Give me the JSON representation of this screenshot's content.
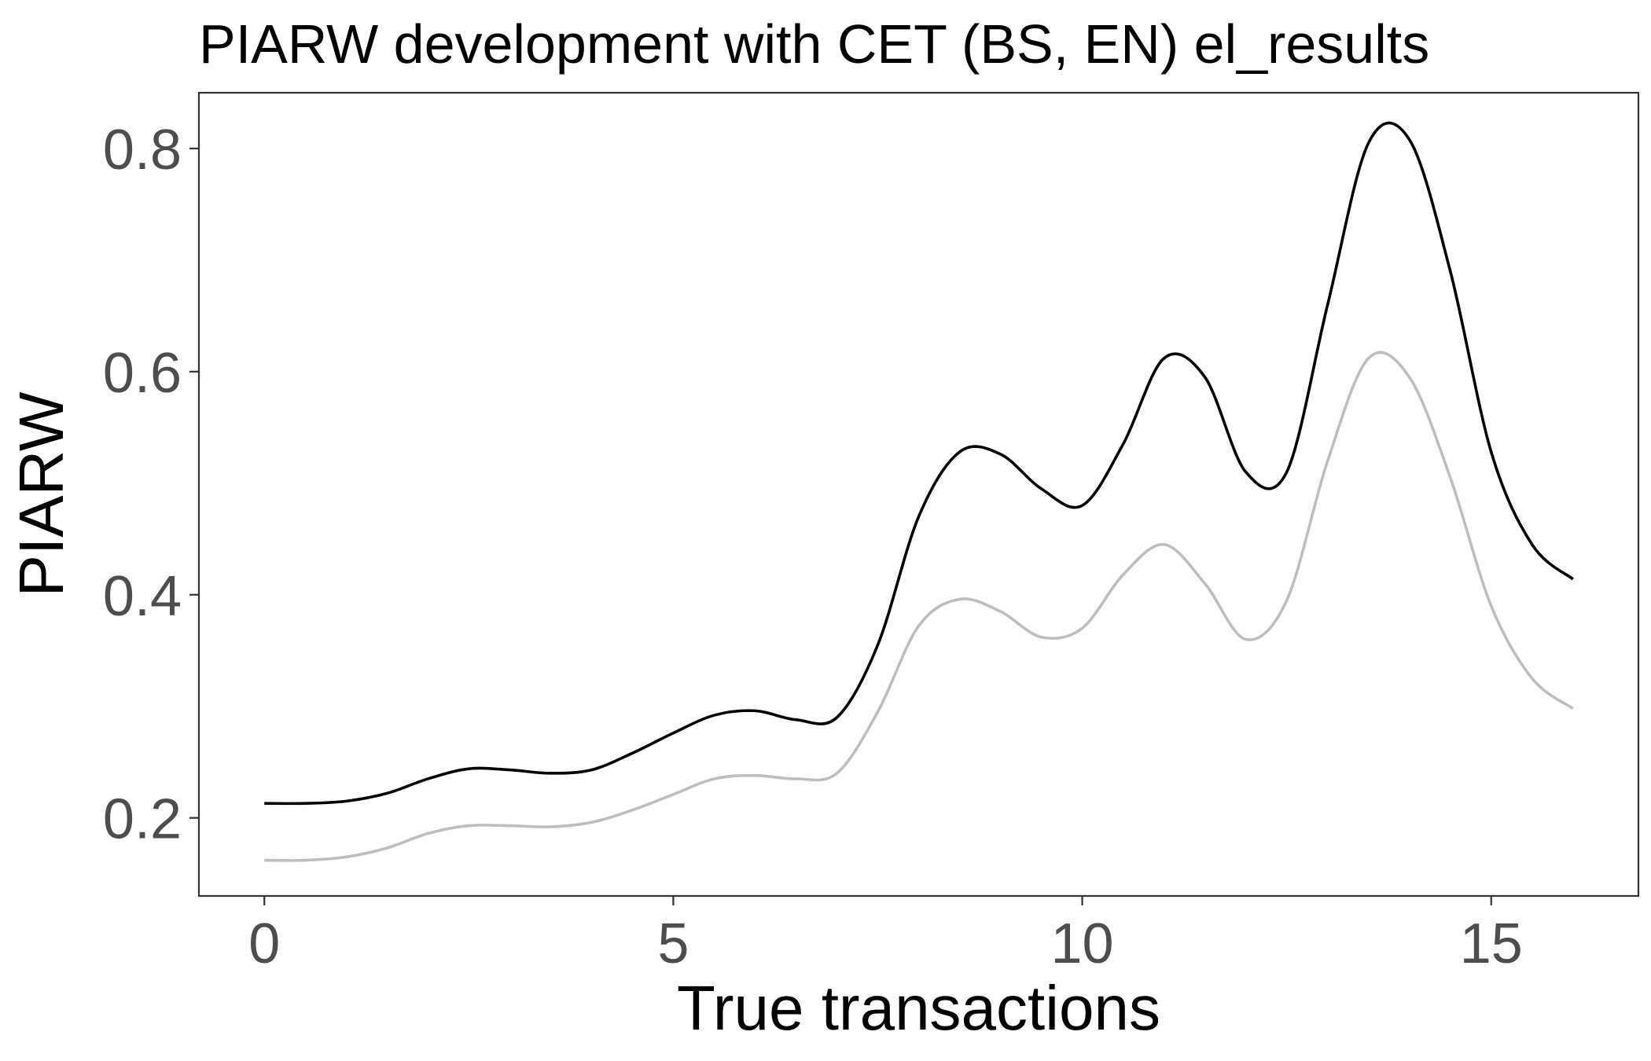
{
  "chart_data": {
    "type": "line",
    "title": "PIARW development with CET (BS, EN) el_results",
    "xlabel": "True transactions",
    "ylabel": "PIARW",
    "xlim": [
      -0.8,
      16.8
    ],
    "ylim": [
      0.13,
      0.85
    ],
    "xticks": [
      0,
      5,
      10,
      15
    ],
    "xtick_labels": [
      "0",
      "5",
      "10",
      "15"
    ],
    "yticks": [
      0.2,
      0.4,
      0.6,
      0.8
    ],
    "ytick_labels": [
      "0.2",
      "0.4",
      "0.6",
      "0.8"
    ],
    "grid": false,
    "legend": "none",
    "series": [
      {
        "color": "#000000",
        "x": [
          0,
          0.5,
          1,
          1.5,
          2,
          2.5,
          3,
          3.5,
          4,
          4.5,
          5,
          5.5,
          6,
          6.5,
          7,
          7.5,
          8,
          8.5,
          9,
          9.5,
          10,
          10.5,
          11,
          11.5,
          12,
          12.5,
          13,
          13.5,
          14,
          14.5,
          15,
          15.5,
          16
        ],
        "y": [
          0.213,
          0.213,
          0.215,
          0.222,
          0.235,
          0.244,
          0.243,
          0.24,
          0.243,
          0.258,
          0.276,
          0.292,
          0.296,
          0.288,
          0.29,
          0.355,
          0.47,
          0.528,
          0.526,
          0.495,
          0.48,
          0.535,
          0.612,
          0.595,
          0.51,
          0.51,
          0.66,
          0.805,
          0.808,
          0.69,
          0.528,
          0.445,
          0.414
        ]
      },
      {
        "color": "#bebebe",
        "x": [
          0,
          0.5,
          1,
          1.5,
          2,
          2.5,
          3,
          3.5,
          4,
          4.5,
          5,
          5.5,
          6,
          6.5,
          7,
          7.5,
          8,
          8.5,
          9,
          9.5,
          10,
          10.5,
          11,
          11.5,
          12,
          12.5,
          13,
          13.5,
          14,
          14.5,
          15,
          15.5,
          16
        ],
        "y": [
          0.162,
          0.162,
          0.165,
          0.173,
          0.186,
          0.193,
          0.193,
          0.192,
          0.196,
          0.207,
          0.221,
          0.235,
          0.238,
          0.235,
          0.24,
          0.295,
          0.372,
          0.396,
          0.385,
          0.362,
          0.37,
          0.418,
          0.445,
          0.41,
          0.36,
          0.395,
          0.52,
          0.612,
          0.595,
          0.505,
          0.39,
          0.325,
          0.298
        ]
      }
    ]
  }
}
